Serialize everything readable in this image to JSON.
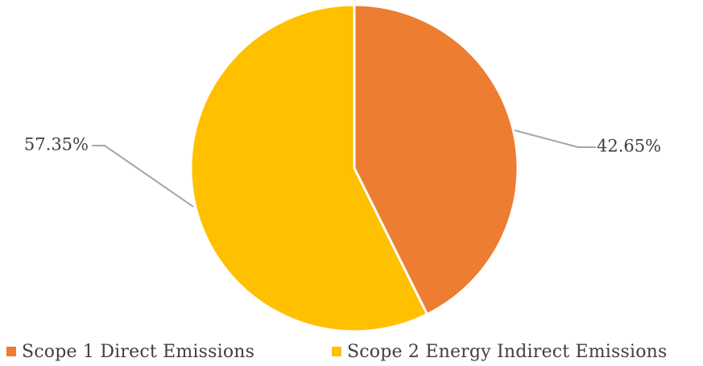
{
  "chart_data": {
    "type": "pie",
    "title": "",
    "slices": [
      {
        "name": "Scope 1 Direct Emissions",
        "value": 42.65,
        "label": "42.65%",
        "color": "#ED7D31"
      },
      {
        "name": "Scope 2 Energy Indirect Emissions",
        "value": 57.35,
        "label": "57.35%",
        "color": "#FFC000"
      }
    ],
    "start_angle": "12 o'clock",
    "direction": "clockwise",
    "legend_position": "bottom",
    "leader_line_color": "#A6A6A6",
    "slice_border_color": "#FFFFFF"
  }
}
